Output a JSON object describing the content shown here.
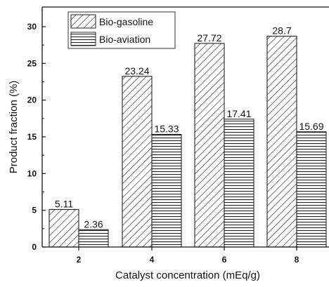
{
  "chart_data": {
    "type": "bar",
    "xlabel": "Catalyst concentration (mEq/g)",
    "ylabel": "Product fraction (%)",
    "ylim": [
      0,
      32
    ],
    "yticks": [
      0,
      5,
      10,
      15,
      20,
      25,
      30
    ],
    "categories": [
      "2",
      "4",
      "6",
      "8"
    ],
    "series": [
      {
        "name": "Bio-gasoline",
        "values": [
          5.11,
          23.24,
          27.72,
          28.7
        ],
        "labels": [
          "5.11",
          "23.24",
          "27.72",
          "28.7"
        ],
        "pattern": "diagonal-hatch"
      },
      {
        "name": "Bio-aviation",
        "values": [
          2.36,
          15.33,
          17.41,
          15.69
        ],
        "labels": [
          "2.36",
          "15.33",
          "17.41",
          "15.69"
        ],
        "pattern": "horizontal-hatch"
      }
    ],
    "legend_position": "top-left",
    "grid": false
  }
}
